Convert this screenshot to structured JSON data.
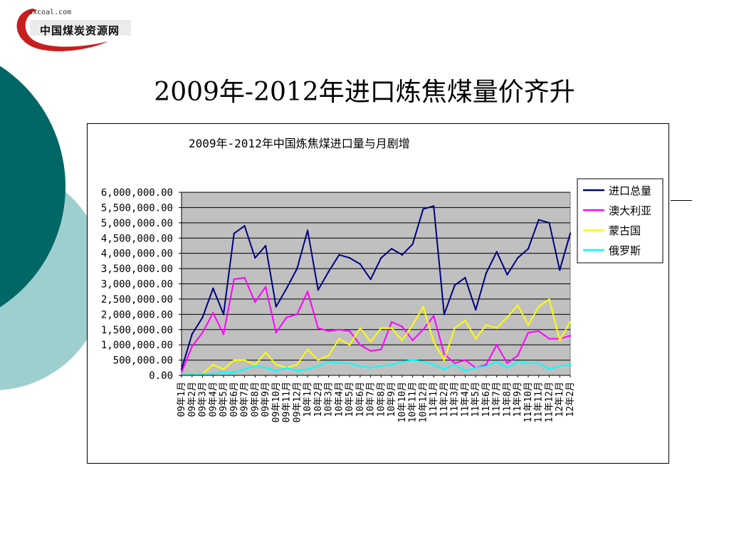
{
  "slide": {
    "title": "2009年-2012年进口炼焦煤量价齐升",
    "logo": {
      "site": "sxcoal.com",
      "name": "中国煤炭资源网"
    }
  },
  "chart_data": {
    "type": "line",
    "title": "2009年-2012年中国炼焦煤进口量与月剧增",
    "xlabel": "",
    "ylabel": "",
    "ylim": [
      0,
      6000000
    ],
    "yticks": [
      0,
      500000,
      1000000,
      1500000,
      2000000,
      2500000,
      3000000,
      3500000,
      4000000,
      4500000,
      5000000,
      5500000,
      6000000
    ],
    "ytick_labels": [
      "0.00",
      "500,000.00",
      "1,000,000.00",
      "1,500,000.00",
      "2,000,000.00",
      "2,500,000.00",
      "3,000,000.00",
      "3,500,000.00",
      "4,000,000.00",
      "4,500,000.00",
      "5,000,000.00",
      "5,500,000.00",
      "6,000,000.00"
    ],
    "grid": true,
    "plot_background": "#c0c0c0",
    "legend_position": "right",
    "categories": [
      "09年1月",
      "09年2月",
      "09年3月",
      "09年4月",
      "09年5月",
      "09年6月",
      "09年7月",
      "09年8月",
      "09年9月",
      "09年10月",
      "09年11月",
      "09年12月",
      "10年1月",
      "10年2月",
      "10年3月",
      "10年4月",
      "10年5月",
      "10年6月",
      "10年7月",
      "10年8月",
      "10年9月",
      "10年10月",
      "10年11月",
      "10年12月",
      "11年1月",
      "11年2月",
      "11年3月",
      "11年4月",
      "11年5月",
      "11年6月",
      "11年7月",
      "11年8月",
      "11年9月",
      "11年10月",
      "11年11月",
      "11年12月",
      "12年1月",
      "12年2月"
    ],
    "tick_labels": [
      "09年1月",
      "09年2月",
      "09年3月",
      "09年4月",
      "09年5月",
      "09年6月",
      "09年7月",
      "09年8月",
      "09年9月",
      "09年10月",
      "09年11月",
      "09年12月",
      "10年1月",
      "10年2月",
      "10年3月",
      "10年4月",
      "10年5月",
      "10年6月",
      "10年7月",
      "10年8月",
      "10年9月",
      "10年10月",
      "10年11月",
      "10年12月",
      "11年1月",
      "11年2月",
      "11年3月",
      "11年4月",
      "11年5月",
      "11年6月",
      "11年7月",
      "11年8月",
      "11年9月",
      "11年10月",
      "11年11月",
      "11年12月",
      "12年1月",
      "12年2月"
    ],
    "series": [
      {
        "name": "进口总量",
        "color": "#000080",
        "values": [
          200000,
          1350000,
          1900000,
          2850000,
          2000000,
          4650000,
          4900000,
          3850000,
          4250000,
          2250000,
          2850000,
          3500000,
          4750000,
          2800000,
          3400000,
          3950000,
          3850000,
          3650000,
          3150000,
          3850000,
          4150000,
          3950000,
          4300000,
          5450000,
          5550000,
          2000000,
          2950000,
          3200000,
          2150000,
          3350000,
          4050000,
          3300000,
          3850000,
          4150000,
          5100000,
          5000000,
          3450000,
          4650000
        ]
      },
      {
        "name": "澳大利亚",
        "color": "#ff00ff",
        "values": [
          100000,
          950000,
          1400000,
          2050000,
          1350000,
          3150000,
          3200000,
          2400000,
          2900000,
          1400000,
          1900000,
          2000000,
          2750000,
          1550000,
          1450000,
          1500000,
          1450000,
          1000000,
          800000,
          850000,
          1750000,
          1600000,
          1150000,
          1500000,
          1950000,
          700000,
          400000,
          500000,
          250000,
          350000,
          1000000,
          400000,
          650000,
          1400000,
          1450000,
          1200000,
          1200000,
          1300000
        ]
      },
      {
        "name": "蒙古国",
        "color": "#ffff00",
        "values": [
          50000,
          50000,
          50000,
          350000,
          200000,
          500000,
          500000,
          350000,
          750000,
          350000,
          250000,
          350000,
          850000,
          500000,
          650000,
          1200000,
          1000000,
          1550000,
          1100000,
          1550000,
          1550000,
          1150000,
          1650000,
          2250000,
          1100000,
          500000,
          1550000,
          1800000,
          1200000,
          1650000,
          1550000,
          1900000,
          2300000,
          1650000,
          2250000,
          2500000,
          1150000,
          1750000
        ]
      },
      {
        "name": "俄罗斯",
        "color": "#00ffff",
        "values": [
          50000,
          50000,
          50000,
          50000,
          100000,
          100000,
          200000,
          300000,
          250000,
          150000,
          250000,
          150000,
          200000,
          300000,
          450000,
          400000,
          400000,
          300000,
          250000,
          300000,
          350000,
          450000,
          500000,
          450000,
          350000,
          200000,
          350000,
          150000,
          250000,
          300000,
          450000,
          250000,
          450000,
          400000,
          400000,
          200000,
          300000,
          350000
        ]
      }
    ]
  }
}
